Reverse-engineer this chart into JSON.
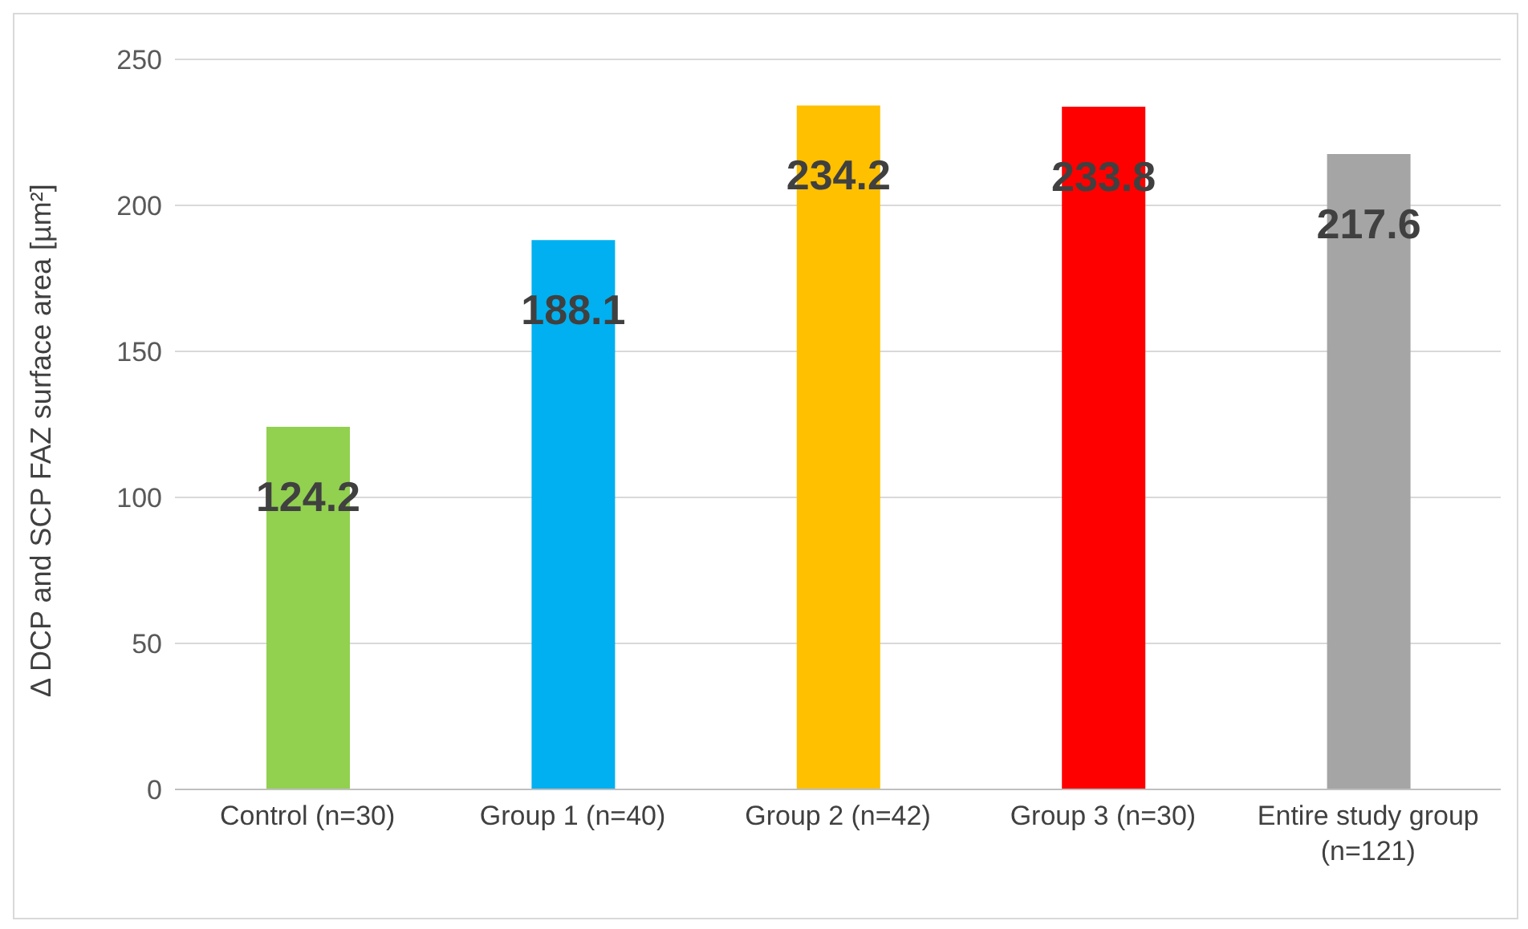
{
  "chart_data": {
    "type": "bar",
    "ylabel": "Δ DCP and SCP FAZ surface area [µm²]",
    "categories": [
      "Control (n=30)",
      "Group 1 (n=40)",
      "Group 2 (n=42)",
      "Group 3 (n=30)",
      "Entire study group (n=121)"
    ],
    "values": [
      124.2,
      188.1,
      234.2,
      233.8,
      217.6
    ],
    "colors": [
      "#92d050",
      "#00b0f0",
      "#ffc000",
      "#ff0000",
      "#a5a5a5"
    ],
    "ylim": [
      0,
      250
    ],
    "yticks": [
      0,
      50,
      100,
      150,
      200,
      250
    ],
    "grid": "y",
    "data_labels": true
  }
}
